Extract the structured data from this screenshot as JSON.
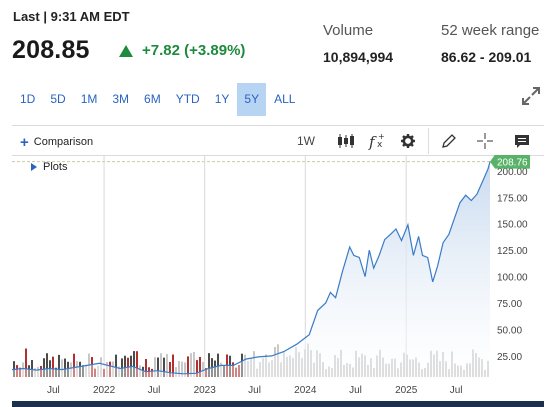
{
  "quote": {
    "last_label": "Last | 9:31 AM EDT",
    "price": "208.85",
    "change": "+7.82 (+3.89%)",
    "change_color": "#1e8a3e"
  },
  "stats": {
    "volume_label": "Volume",
    "volume_value": "10,894,994",
    "range_label": "52 week range",
    "range_value": "86.62 - 209.01"
  },
  "ranges": [
    "1D",
    "5D",
    "1M",
    "3M",
    "6M",
    "YTD",
    "1Y",
    "5Y",
    "ALL"
  ],
  "active_range": "5Y",
  "toolbar": {
    "comparison_label": "Comparison",
    "plots_label": "Plots",
    "interval_label": "1W",
    "icons": [
      "candlestick-icon",
      "function-icon",
      "gear-icon",
      "pencil-icon",
      "crosshair-icon",
      "chat-icon"
    ]
  },
  "colors": {
    "accent_blue": "#2a63c2",
    "active_range_bg": "#b8d4f3",
    "area_fill_top": "#c5d8ee",
    "line": "#3a7bc8",
    "price_tag": "#58b368",
    "volume_bar": "#c8c8c8",
    "volume_bar_dark": "#4a4a4a",
    "volume_bar_red": "#b03030",
    "footer": "#1c2f4d"
  },
  "chart_data": {
    "type": "area",
    "x_tick_labels": [
      "Jul",
      "2022",
      "Jul",
      "2023",
      "Jul",
      "2024",
      "Jul",
      "2025",
      "Jul"
    ],
    "y_ticks": [
      25,
      50,
      75,
      100,
      125,
      150,
      175,
      200
    ],
    "y_tick_labels": [
      "25.00",
      "50.00",
      "75.00",
      "100.00",
      "125.00",
      "150.00",
      "175.00",
      "200.00"
    ],
    "ylim": [
      5,
      215
    ],
    "x_range": [
      "2021-02",
      "2025-11"
    ],
    "last_price_label": "208.76",
    "last_price": 208.76,
    "series": [
      {
        "values": [
          [
            "2021-02-01",
            12
          ],
          [
            "2021-03-15",
            13
          ],
          [
            "2021-05-01",
            11.5
          ],
          [
            "2021-06-15",
            13
          ],
          [
            "2021-08-01",
            12
          ],
          [
            "2021-09-15",
            14
          ],
          [
            "2021-11-01",
            16
          ],
          [
            "2021-12-15",
            18
          ],
          [
            "2022-01-15",
            16
          ],
          [
            "2022-03-01",
            13
          ],
          [
            "2022-04-15",
            15
          ],
          [
            "2022-06-01",
            10
          ],
          [
            "2022-07-15",
            11
          ],
          [
            "2022-09-01",
            9
          ],
          [
            "2022-10-15",
            8
          ],
          [
            "2022-12-01",
            8.5
          ],
          [
            "2023-01-15",
            13
          ],
          [
            "2023-03-01",
            16
          ],
          [
            "2023-04-15",
            16
          ],
          [
            "2023-06-01",
            22
          ],
          [
            "2023-07-15",
            24
          ],
          [
            "2023-09-01",
            25
          ],
          [
            "2023-10-15",
            29
          ],
          [
            "2023-12-01",
            36
          ],
          [
            "2024-01-15",
            45
          ],
          [
            "2024-02-15",
            68
          ],
          [
            "2024-03-15",
            75
          ],
          [
            "2024-04-01",
            85
          ],
          [
            "2024-04-20",
            80
          ],
          [
            "2024-05-15",
            105
          ],
          [
            "2024-06-10",
            128
          ],
          [
            "2024-06-25",
            120
          ],
          [
            "2024-07-15",
            118
          ],
          [
            "2024-08-05",
            100
          ],
          [
            "2024-08-20",
            125
          ],
          [
            "2024-09-05",
            108
          ],
          [
            "2024-09-25",
            120
          ],
          [
            "2024-10-15",
            135
          ],
          [
            "2024-11-05",
            140
          ],
          [
            "2024-11-25",
            145
          ],
          [
            "2024-12-15",
            134
          ],
          [
            "2025-01-07",
            149
          ],
          [
            "2025-01-27",
            120
          ],
          [
            "2025-02-15",
            138
          ],
          [
            "2025-03-01",
            120
          ],
          [
            "2025-03-20",
            118
          ],
          [
            "2025-04-07",
            95
          ],
          [
            "2025-04-25",
            110
          ],
          [
            "2025-05-15",
            132
          ],
          [
            "2025-06-05",
            140
          ],
          [
            "2025-06-25",
            155
          ],
          [
            "2025-07-15",
            170
          ],
          [
            "2025-08-05",
            177
          ],
          [
            "2025-08-25",
            172
          ],
          [
            "2025-09-15",
            178
          ],
          [
            "2025-10-05",
            190
          ],
          [
            "2025-10-25",
            202
          ],
          [
            "2025-11-01",
            208.76
          ]
        ]
      }
    ],
    "grid": "vertical year lines",
    "volume_panel": true
  }
}
